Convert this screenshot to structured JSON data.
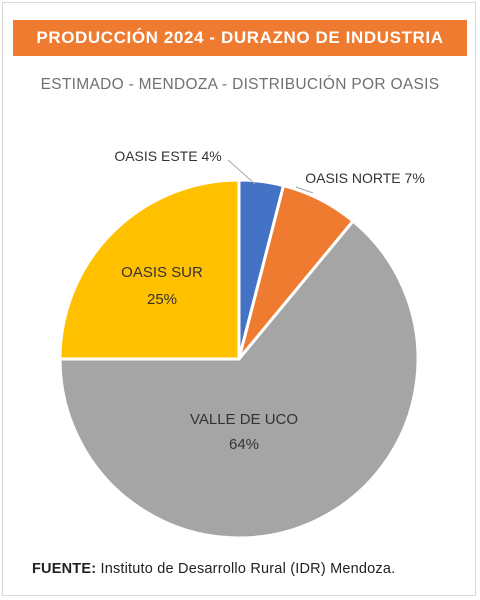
{
  "chart_data": {
    "type": "pie",
    "title": "PRODUCCIÓN 2024 - DURAZNO DE INDUSTRIA",
    "subtitle": "ESTIMADO - MENDOZA - DISTRIBUCIÓN POR OASIS",
    "slices": [
      {
        "label": "OASIS ESTE",
        "value": 4,
        "value_label": "4%",
        "color": "#4472c4"
      },
      {
        "label": "OASIS NORTE",
        "value": 7,
        "value_label": "7%",
        "color": "#ee7b30"
      },
      {
        "label": "VALLE DE UCO",
        "value": 64,
        "value_label": "64%",
        "color": "#a5a5a5"
      },
      {
        "label": "OASIS SUR",
        "value": 25,
        "value_label": "25%",
        "color": "#ffc000"
      }
    ],
    "labels": {
      "este": "OASIS ESTE 4%",
      "norte": "OASIS NORTE 7%",
      "uco_name": "VALLE DE UCO",
      "uco_pct": "64%",
      "sur_name": "OASIS SUR",
      "sur_pct": "25%"
    }
  },
  "source": {
    "label": "FUENTE:",
    "text": "Instituto de Desarrollo Rural (IDR) Mendoza."
  }
}
